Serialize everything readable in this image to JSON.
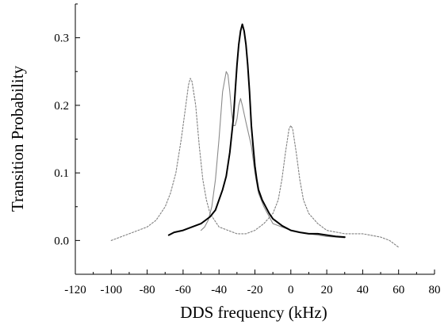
{
  "chart_data": {
    "type": "line",
    "title": "",
    "xlabel": "DDS frequency (kHz)",
    "ylabel": "Transition Probability",
    "xlim": [
      -120,
      80
    ],
    "ylim": [
      -0.05,
      0.35
    ],
    "xticks": [
      -120,
      -100,
      -80,
      -60,
      -40,
      -20,
      0,
      20,
      40,
      60,
      80
    ],
    "yticks": [
      0.0,
      0.1,
      0.2,
      0.3
    ],
    "ytick_labels": [
      "0.0",
      "0.1",
      "0.2",
      "0.3"
    ],
    "grid": false,
    "legend": "none",
    "series": [
      {
        "style": "dotted",
        "color": "#808080",
        "points": [
          [
            -100,
            0.0
          ],
          [
            -95,
            0.005
          ],
          [
            -90,
            0.01
          ],
          [
            -85,
            0.015
          ],
          [
            -80,
            0.02
          ],
          [
            -75,
            0.03
          ],
          [
            -70,
            0.05
          ],
          [
            -67,
            0.07
          ],
          [
            -64,
            0.1
          ],
          [
            -61,
            0.15
          ],
          [
            -59,
            0.19
          ],
          [
            -57,
            0.23
          ],
          [
            -56,
            0.24
          ],
          [
            -55,
            0.235
          ],
          [
            -53,
            0.2
          ],
          [
            -51,
            0.14
          ],
          [
            -49,
            0.09
          ],
          [
            -47,
            0.06
          ],
          [
            -45,
            0.04
          ],
          [
            -40,
            0.02
          ],
          [
            -35,
            0.015
          ],
          [
            -30,
            0.01
          ],
          [
            -25,
            0.01
          ],
          [
            -20,
            0.015
          ],
          [
            -15,
            0.025
          ],
          [
            -10,
            0.04
          ],
          [
            -7,
            0.06
          ],
          [
            -5,
            0.09
          ],
          [
            -3,
            0.13
          ],
          [
            -1,
            0.165
          ],
          [
            0,
            0.17
          ],
          [
            1,
            0.165
          ],
          [
            3,
            0.13
          ],
          [
            5,
            0.09
          ],
          [
            7,
            0.06
          ],
          [
            10,
            0.04
          ],
          [
            15,
            0.025
          ],
          [
            20,
            0.015
          ],
          [
            30,
            0.01
          ],
          [
            40,
            0.01
          ],
          [
            50,
            0.005
          ],
          [
            55,
            0.0
          ],
          [
            60,
            -0.01
          ]
        ]
      },
      {
        "style": "solid-thin",
        "color": "#8a8a8a",
        "points": [
          [
            -50,
            0.015
          ],
          [
            -48,
            0.02
          ],
          [
            -46,
            0.03
          ],
          [
            -44,
            0.05
          ],
          [
            -42,
            0.09
          ],
          [
            -40,
            0.15
          ],
          [
            -38,
            0.22
          ],
          [
            -36,
            0.25
          ],
          [
            -35,
            0.245
          ],
          [
            -34,
            0.22
          ],
          [
            -33,
            0.19
          ],
          [
            -32,
            0.17
          ],
          [
            -31,
            0.17
          ],
          [
            -30,
            0.18
          ],
          [
            -29,
            0.2
          ],
          [
            -28,
            0.21
          ],
          [
            -27,
            0.2
          ],
          [
            -25,
            0.175
          ],
          [
            -22,
            0.14
          ],
          [
            -20,
            0.1
          ],
          [
            -18,
            0.07
          ],
          [
            -15,
            0.05
          ],
          [
            -12,
            0.035
          ],
          [
            -10,
            0.025
          ],
          [
            -5,
            0.02
          ],
          [
            0,
            0.015
          ],
          [
            5,
            0.012
          ],
          [
            10,
            0.01
          ],
          [
            15,
            0.008
          ],
          [
            20,
            0.006
          ],
          [
            25,
            0.005
          ],
          [
            30,
            0.004
          ]
        ]
      },
      {
        "style": "solid-thick",
        "color": "#000000",
        "points": [
          [
            -68,
            0.008
          ],
          [
            -65,
            0.012
          ],
          [
            -60,
            0.015
          ],
          [
            -55,
            0.02
          ],
          [
            -50,
            0.025
          ],
          [
            -45,
            0.035
          ],
          [
            -42,
            0.045
          ],
          [
            -40,
            0.06
          ],
          [
            -38,
            0.075
          ],
          [
            -36,
            0.095
          ],
          [
            -34,
            0.13
          ],
          [
            -32,
            0.18
          ],
          [
            -31,
            0.22
          ],
          [
            -30,
            0.26
          ],
          [
            -29,
            0.29
          ],
          [
            -28,
            0.31
          ],
          [
            -27,
            0.32
          ],
          [
            -26,
            0.31
          ],
          [
            -25,
            0.29
          ],
          [
            -24,
            0.26
          ],
          [
            -23,
            0.22
          ],
          [
            -22,
            0.17
          ],
          [
            -21,
            0.14
          ],
          [
            -20,
            0.11
          ],
          [
            -19,
            0.09
          ],
          [
            -18,
            0.075
          ],
          [
            -16,
            0.06
          ],
          [
            -14,
            0.05
          ],
          [
            -12,
            0.04
          ],
          [
            -10,
            0.032
          ],
          [
            -5,
            0.022
          ],
          [
            0,
            0.015
          ],
          [
            5,
            0.012
          ],
          [
            10,
            0.01
          ],
          [
            15,
            0.01
          ],
          [
            20,
            0.008
          ],
          [
            25,
            0.006
          ],
          [
            30,
            0.005
          ]
        ]
      }
    ]
  }
}
